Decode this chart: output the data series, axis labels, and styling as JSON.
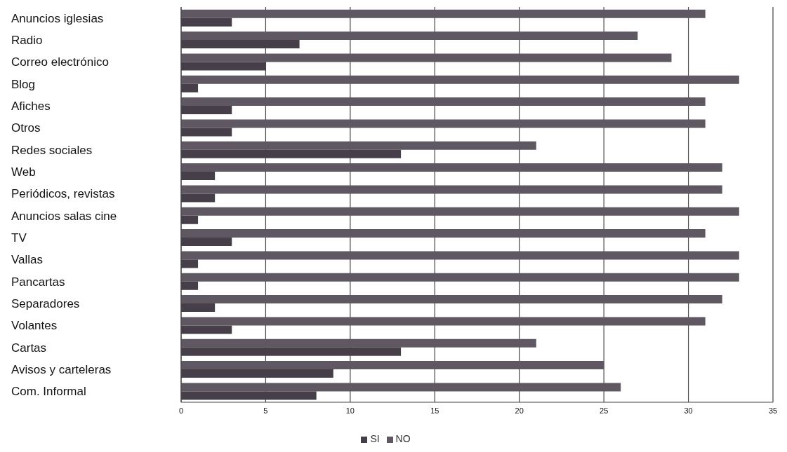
{
  "chart_data": {
    "type": "bar",
    "orientation": "horizontal",
    "categories": [
      "Anuncios iglesias",
      "Radio",
      "Correo electrónico",
      "Blog",
      "Afiches",
      "Otros",
      "Redes sociales",
      "Web",
      "Periódicos, revistas",
      "Anuncios salas cine",
      "TV",
      "Vallas",
      "Pancartas",
      "Separadores",
      "Volantes",
      "Cartas",
      "Avisos y carteleras",
      "Com. Informal"
    ],
    "series": [
      {
        "name": "SI",
        "color": "#463f49",
        "values": [
          3,
          7,
          5,
          1,
          3,
          3,
          13,
          2,
          2,
          1,
          3,
          1,
          1,
          2,
          3,
          13,
          9,
          8
        ]
      },
      {
        "name": "NO",
        "color": "#5f5762",
        "values": [
          31,
          27,
          29,
          33,
          31,
          31,
          21,
          32,
          32,
          33,
          31,
          33,
          33,
          32,
          31,
          21,
          25,
          26
        ]
      }
    ],
    "xlim": [
      0,
      35
    ],
    "xticks": [
      0,
      5,
      10,
      15,
      20,
      25,
      30,
      35
    ],
    "grid": "x",
    "legend": "bottom"
  }
}
